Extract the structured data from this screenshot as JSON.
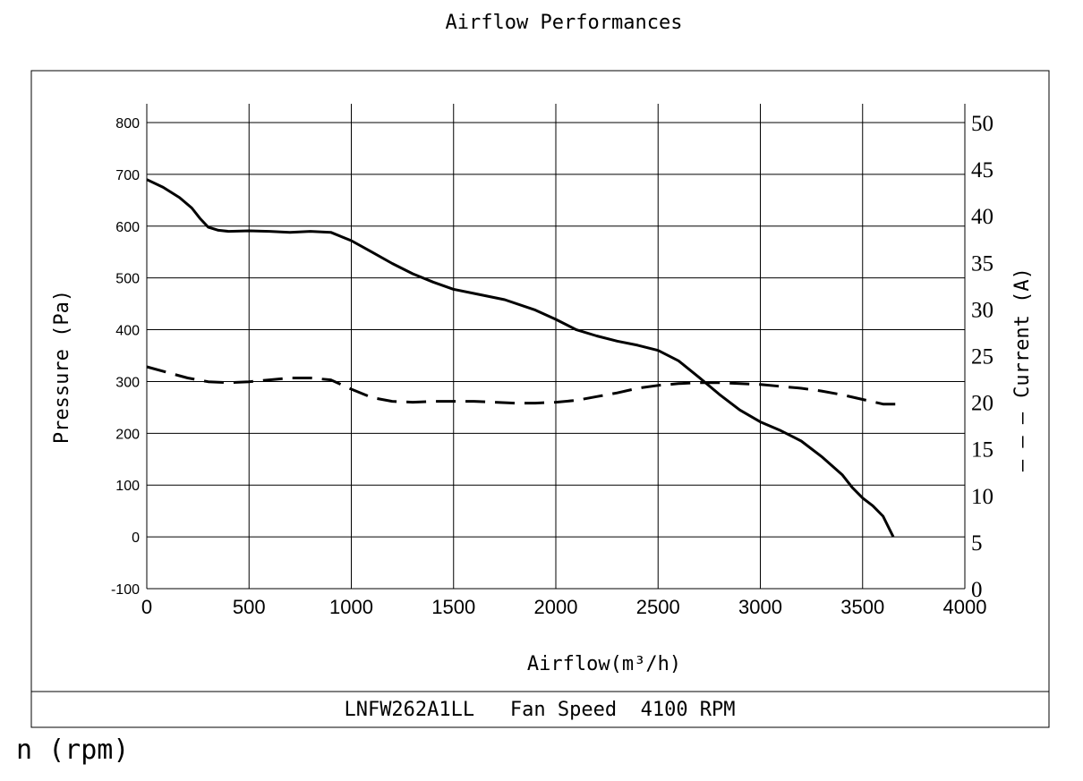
{
  "chart_data": {
    "type": "line",
    "title": "Airflow Performances",
    "xlabel": "Airflow(m³/h)",
    "ylabel": "Pressure (Pa)",
    "y2label": "Current (A)",
    "y2label_marker": "— — —",
    "xlim": [
      0,
      4000
    ],
    "ylim": [
      -100,
      800
    ],
    "y2lim": [
      0,
      50
    ],
    "x_ticks": [
      "0",
      "500",
      "1000",
      "1500",
      "2000",
      "2500",
      "3000",
      "3500",
      "4000"
    ],
    "y_ticks": [
      "-100",
      "0",
      "100",
      "200",
      "300",
      "400",
      "500",
      "600",
      "700",
      "800"
    ],
    "y2_ticks": [
      "0",
      "5",
      "10",
      "15",
      "20",
      "25",
      "30",
      "35",
      "40",
      "45",
      "50"
    ],
    "grid": true,
    "series": [
      {
        "axis": "left",
        "style": "solid",
        "x": [
          0,
          80,
          160,
          220,
          260,
          300,
          350,
          400,
          500,
          600,
          700,
          800,
          900,
          1000,
          1100,
          1200,
          1300,
          1400,
          1500,
          1600,
          1750,
          1900,
          2000,
          2100,
          2200,
          2300,
          2400,
          2500,
          2600,
          2700,
          2800,
          2900,
          3000,
          3100,
          3200,
          3300,
          3400,
          3450,
          3500,
          3550,
          3600,
          3650
        ],
        "values": [
          690,
          675,
          655,
          635,
          615,
          598,
          592,
          590,
          591,
          590,
          588,
          590,
          588,
          572,
          550,
          528,
          508,
          492,
          478,
          470,
          458,
          438,
          420,
          400,
          388,
          378,
          370,
          360,
          340,
          308,
          275,
          245,
          222,
          205,
          185,
          155,
          120,
          95,
          75,
          60,
          40,
          0
        ]
      },
      {
        "axis": "right",
        "style": "dashed",
        "x": [
          0,
          100,
          200,
          300,
          400,
          500,
          600,
          700,
          800,
          900,
          1000,
          1100,
          1200,
          1300,
          1400,
          1500,
          1600,
          1700,
          1800,
          1900,
          2000,
          2100,
          2200,
          2300,
          2400,
          2500,
          2600,
          2700,
          2800,
          2900,
          3000,
          3100,
          3200,
          3300,
          3400,
          3500,
          3600,
          3700
        ],
        "values": [
          23.8,
          23.2,
          22.6,
          22.2,
          22.1,
          22.2,
          22.4,
          22.6,
          22.6,
          22.4,
          21.4,
          20.5,
          20.1,
          20.0,
          20.1,
          20.1,
          20.1,
          20.0,
          19.9,
          19.9,
          20.0,
          20.2,
          20.6,
          21.0,
          21.5,
          21.8,
          22.0,
          22.1,
          22.1,
          22.0,
          21.9,
          21.7,
          21.5,
          21.2,
          20.8,
          20.3,
          19.8,
          19.8
        ]
      }
    ]
  },
  "footer": {
    "caption": "LNFW262A1LL   Fan Speed  4100 RPM"
  },
  "note": {
    "text": "n (rpm)"
  }
}
